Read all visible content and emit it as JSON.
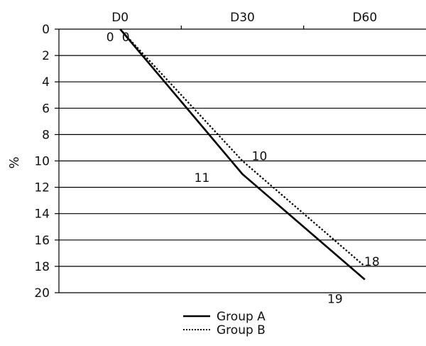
{
  "chart_data": {
    "type": "line",
    "categories": [
      "D0",
      "D30",
      "D60"
    ],
    "ylabel": "%",
    "ylim": [
      0,
      20
    ],
    "y_axis_inverted": true,
    "y_ticks": [
      "0",
      "2",
      "4",
      "6",
      "8",
      "10",
      "12",
      "14",
      "16",
      "18",
      "20"
    ],
    "grid": true,
    "x_axis_position": "top",
    "legend_position": "bottom-center",
    "series": [
      {
        "name": "Group A",
        "line_style": "solid",
        "values": [
          0,
          11,
          19
        ],
        "labels": [
          "0",
          "11",
          "19"
        ]
      },
      {
        "name": "Group B",
        "line_style": "dotted",
        "values": [
          0,
          10,
          18
        ],
        "labels": [
          "0",
          "10",
          "18"
        ]
      }
    ],
    "colors": {
      "line": "#000000",
      "text": "#111111",
      "background": "#ffffff"
    }
  }
}
